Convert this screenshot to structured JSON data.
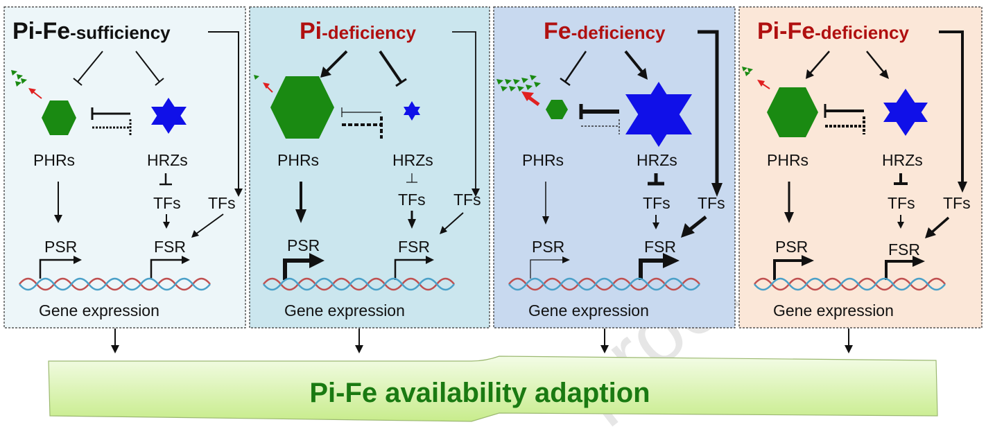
{
  "panels": [
    {
      "title_main": "Pi-Fe",
      "title_suffix": "-sufficiency",
      "title_color": "#111111",
      "bg": "#edf6f9",
      "phr_label": "PHRs",
      "hrz_label": "HRZs",
      "tfs_inner_label": "TFs",
      "tfs_outer_label": "TFs",
      "psr_label": "PSR",
      "fsr_label": "FSR",
      "gene_label": "Gene expression"
    },
    {
      "title_main": "Pi",
      "title_suffix": "-deficiency",
      "title_color": "#b01010",
      "bg": "#cbe6ee",
      "phr_label": "PHRs",
      "hrz_label": "HRZs",
      "tfs_inner_label": "TFs",
      "tfs_outer_label": "TFs",
      "psr_label": "PSR",
      "fsr_label": "FSR",
      "gene_label": "Gene expression"
    },
    {
      "title_main": "Fe",
      "title_suffix": "-deficiency",
      "title_color": "#b01010",
      "bg": "#c8d9ef",
      "phr_label": "PHRs",
      "hrz_label": "HRZs",
      "tfs_inner_label": "TFs",
      "tfs_outer_label": "TFs",
      "psr_label": "PSR",
      "fsr_label": "FSR",
      "gene_label": "Gene expression"
    },
    {
      "title_main": "Pi-Fe",
      "title_suffix": "-deficiency",
      "title_color": "#b01010",
      "bg": "#fbe7d8",
      "phr_label": "PHRs",
      "hrz_label": "HRZs",
      "tfs_inner_label": "TFs",
      "tfs_outer_label": "TFs",
      "psr_label": "PSR",
      "fsr_label": "FSR",
      "gene_label": "Gene expression"
    }
  ],
  "banner": {
    "text": "Pi-Fe availability adaption",
    "color": "#1a7a12"
  },
  "watermark": "proof",
  "colors": {
    "phr_hexagon": "#1a8a12",
    "hrz_star": "#1010e8",
    "dna_red": "#c05050",
    "dna_blue": "#4aa0c8",
    "signal_arrow": "#e02020",
    "banner_fill": "#d6f2a6"
  }
}
